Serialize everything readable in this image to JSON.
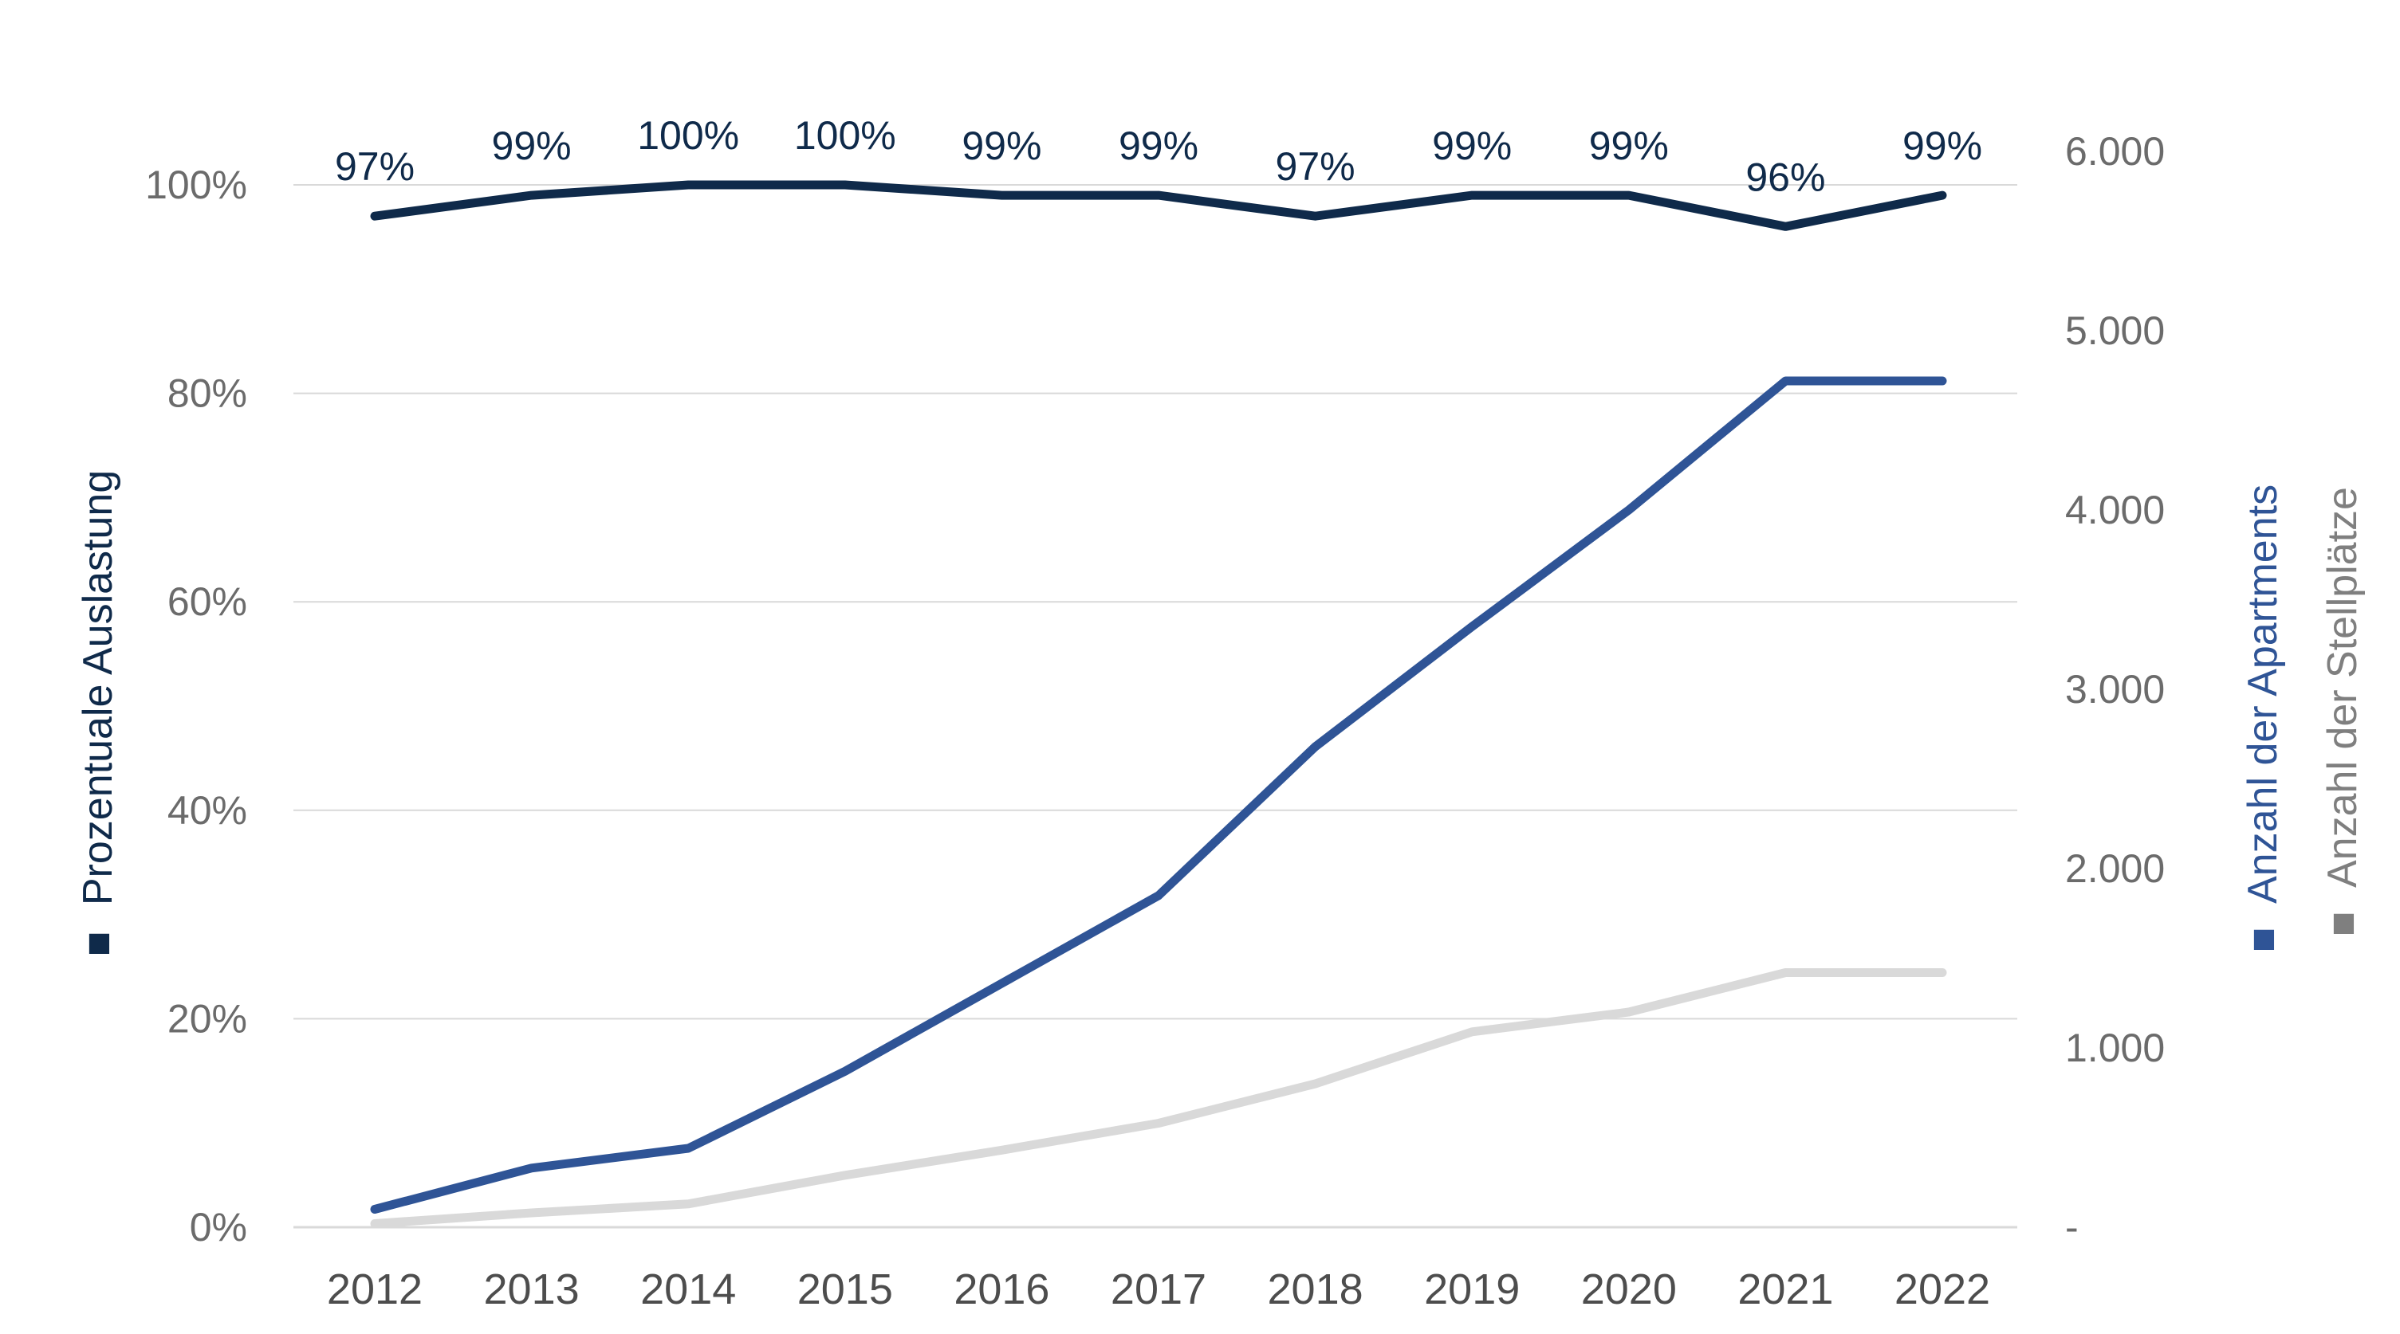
{
  "chart_data": {
    "type": "line",
    "categories": [
      "2012",
      "2013",
      "2014",
      "2015",
      "2016",
      "2017",
      "2018",
      "2019",
      "2020",
      "2021",
      "2022"
    ],
    "series": [
      {
        "name": "Prozentuale Auslastung",
        "axis": "left",
        "color": "#0f2a4a",
        "values": [
          97,
          99,
          100,
          100,
          99,
          99,
          97,
          99,
          99,
          96,
          99
        ],
        "labels": [
          "97%",
          "99%",
          "100%",
          "100%",
          "99%",
          "99%",
          "97%",
          "99%",
          "99%",
          "96%",
          "99%"
        ]
      },
      {
        "name": "Anzahl der Apartments",
        "axis": "right",
        "color": "#2f5496",
        "values": [
          100,
          330,
          440,
          870,
          1360,
          1850,
          2680,
          3350,
          4000,
          4720,
          4720
        ]
      },
      {
        "name": "Anzahl der Stellplätze",
        "axis": "right",
        "color": "#d9d9d9",
        "values": [
          20,
          80,
          130,
          290,
          430,
          580,
          800,
          1090,
          1200,
          1420,
          1420
        ]
      }
    ],
    "y_left": {
      "label": "Prozentuale Auslastung",
      "ticks": [
        "0%",
        "20%",
        "40%",
        "60%",
        "80%",
        "100%"
      ],
      "tick_values": [
        0,
        20,
        40,
        60,
        80,
        100
      ],
      "ylim": [
        0,
        100
      ]
    },
    "y_right": {
      "labels": [
        "Anzahl der Apartments",
        "Anzahl der Stellplätze"
      ],
      "ticks": [
        "-",
        "1.000",
        "2.000",
        "3.000",
        "4.000",
        "5.000",
        "6.000"
      ],
      "tick_values": [
        0,
        1000,
        2000,
        3000,
        4000,
        5000,
        6000
      ],
      "ylim": [
        0,
        6000
      ]
    },
    "grid": true,
    "legend_marker": "■",
    "colors": {
      "grid": "#d9d9d9",
      "tick_text": "#6b6b6b",
      "left_title": "#0f2a4a",
      "right_title_apartments": "#2f5496",
      "right_title_stellplaetze": "#7f7f7f"
    }
  }
}
